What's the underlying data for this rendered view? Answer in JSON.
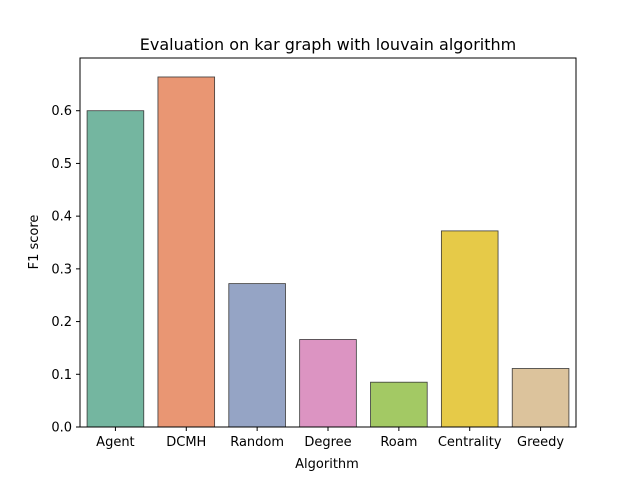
{
  "chart_data": {
    "type": "bar",
    "title": "Evaluation on kar graph with louvain algorithm",
    "xlabel": "Algorithm",
    "ylabel": "F1 score",
    "categories": [
      "Agent",
      "DCMH",
      "Random",
      "Degree",
      "Roam",
      "Centrality",
      "Greedy"
    ],
    "values": [
      0.6,
      0.664,
      0.272,
      0.166,
      0.085,
      0.372,
      0.111
    ],
    "colors": [
      "#74b6a0",
      "#e99673",
      "#95a4c5",
      "#dc94c2",
      "#a3c964",
      "#e6ca48",
      "#dcc39c"
    ],
    "ylim": [
      0,
      0.7
    ],
    "yticks": [
      0.0,
      0.1,
      0.2,
      0.3,
      0.4,
      0.5,
      0.6
    ],
    "ytick_labels": [
      "0.0",
      "0.1",
      "0.2",
      "0.3",
      "0.4",
      "0.5",
      "0.6"
    ],
    "grid": false,
    "legend": "none"
  }
}
